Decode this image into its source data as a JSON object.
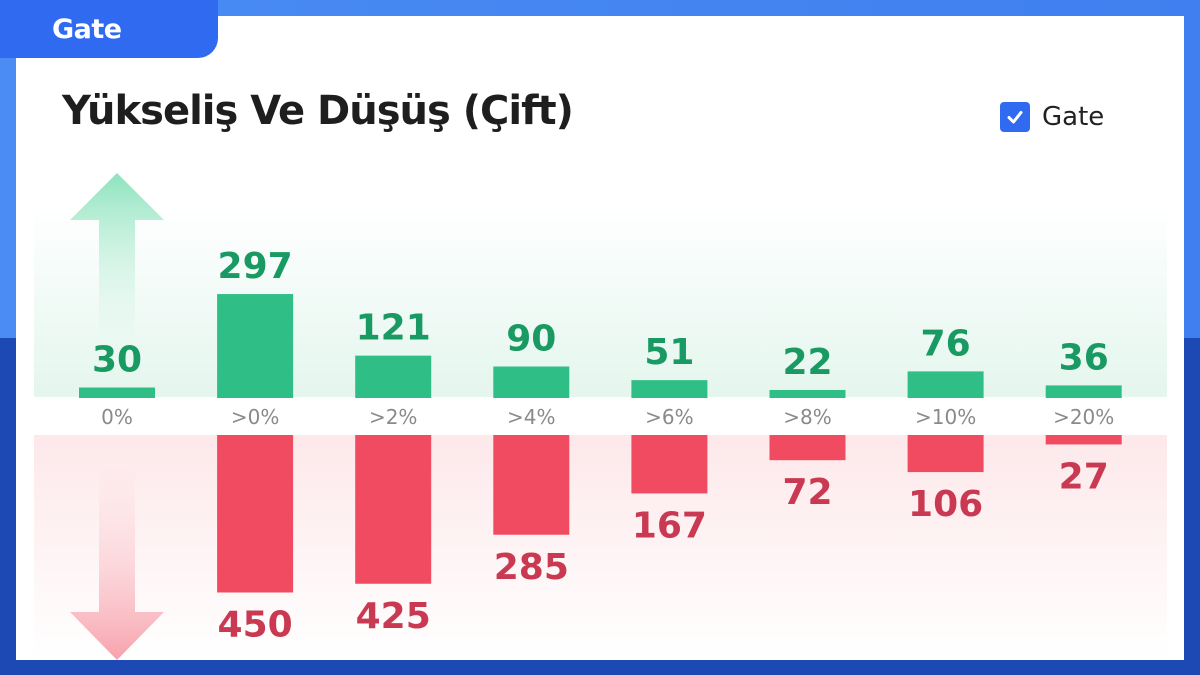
{
  "brand": {
    "logo_text": "Gate"
  },
  "legend": {
    "label": "Gate",
    "checked": true,
    "color": "#2f6af0"
  },
  "colors": {
    "rise": "#2fbf86",
    "rise_text": "#1a9a63",
    "fall": "#f04b60",
    "fall_text": "#c93a52"
  },
  "chart_data": {
    "type": "bar",
    "title": "Yükseliş Ve Düşüş (Çift)",
    "categories": [
      "0%",
      ">0%",
      ">2%",
      ">4%",
      ">6%",
      ">8%",
      ">10%",
      ">20%"
    ],
    "series": [
      {
        "values": [
          30,
          297,
          121,
          90,
          51,
          22,
          76,
          36
        ]
      },
      {
        "values": [
          null,
          450,
          425,
          285,
          167,
          72,
          106,
          27
        ]
      }
    ]
  }
}
